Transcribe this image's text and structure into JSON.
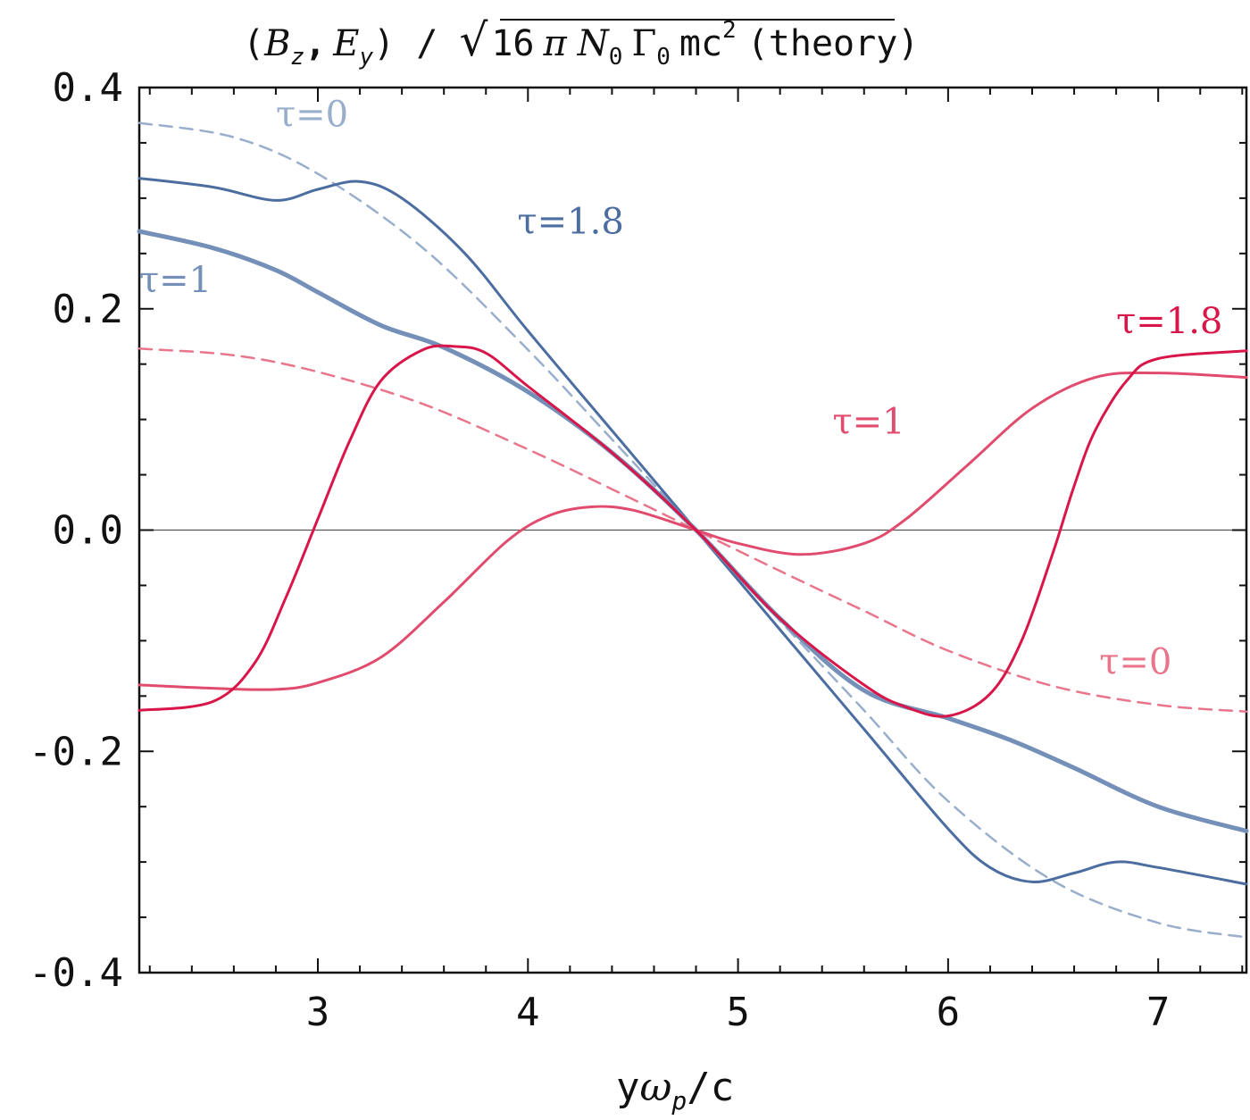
{
  "chart_data": {
    "type": "line",
    "title": "(B_z, E_y) / √(16 π N₀ Γ₀ mc²) (theory)",
    "title_parts": {
      "open": "(",
      "bz": "B",
      "bz_sub": "z",
      "comma": ",",
      "ey": "E",
      "ey_sub": "y",
      "close_slash": ") /",
      "sqrt_sign": "√",
      "radicand_num": "16",
      "pi": "π",
      "n": "N",
      "n_sub": "0",
      "gamma": "Γ",
      "gamma_sub": "0",
      "mc": "mc",
      "mc_sup": "2",
      "theory": "(theory)"
    },
    "xlabel": "yω_p/c",
    "xlabel_parts": {
      "y": "y",
      "omega": "ω",
      "omega_sub": "p",
      "rest": "/c"
    },
    "ylabel": "",
    "xlim": [
      2.15,
      7.42
    ],
    "ylim": [
      -0.4,
      0.4
    ],
    "x_ticks": [
      3,
      4,
      5,
      6,
      7
    ],
    "x_tick_labels": [
      "3",
      "4",
      "5",
      "6",
      "7"
    ],
    "y_ticks": [
      -0.4,
      -0.2,
      0.0,
      0.2,
      0.4
    ],
    "y_tick_labels": [
      "-0.4",
      "-0.2",
      "0.0",
      "0.2",
      "0.4"
    ],
    "zero_line": true,
    "series": [
      {
        "name": "Bz τ=0 (dashed)",
        "label": "τ=0",
        "color": "#98AECB",
        "dashed": true,
        "width": 2.5,
        "x": [
          2.15,
          2.6,
          3.0,
          3.5,
          4.0,
          4.4,
          4.8,
          5.2,
          5.6,
          6.0,
          6.5,
          7.0,
          7.42
        ],
        "y": [
          0.368,
          0.355,
          0.322,
          0.255,
          0.163,
          0.082,
          0.0,
          -0.082,
          -0.163,
          -0.245,
          -0.317,
          -0.355,
          -0.368
        ]
      },
      {
        "name": "Bz τ=1.8",
        "label": "τ=1.8",
        "color": "#4C6DA0",
        "dashed": false,
        "width": 3,
        "x": [
          2.15,
          2.5,
          2.8,
          3.0,
          3.2,
          3.4,
          3.7,
          4.0,
          4.4,
          4.8,
          5.2,
          5.6,
          6.0,
          6.2,
          6.4,
          6.6,
          6.8,
          7.0,
          7.42
        ],
        "y": [
          0.318,
          0.31,
          0.298,
          0.308,
          0.315,
          0.3,
          0.25,
          0.18,
          0.09,
          0.0,
          -0.09,
          -0.18,
          -0.27,
          -0.305,
          -0.318,
          -0.31,
          -0.3,
          -0.305,
          -0.32
        ]
      },
      {
        "name": "Bz τ=1 (thick)",
        "label": "τ=1",
        "color": "#7490B8",
        "dashed": false,
        "width": 5,
        "x": [
          2.15,
          2.5,
          2.8,
          3.0,
          3.3,
          3.6,
          4.0,
          4.4,
          4.8,
          5.2,
          5.6,
          6.0,
          6.3,
          6.6,
          7.0,
          7.42
        ],
        "y": [
          0.27,
          0.255,
          0.235,
          0.215,
          0.185,
          0.165,
          0.125,
          0.07,
          0.0,
          -0.08,
          -0.145,
          -0.17,
          -0.19,
          -0.215,
          -0.25,
          -0.272
        ]
      },
      {
        "name": "Ey τ=0 (dashed)",
        "label": "τ=0",
        "color": "#E8758C",
        "dashed": true,
        "width": 2.5,
        "x": [
          2.15,
          2.6,
          3.0,
          3.5,
          4.0,
          4.4,
          4.8,
          5.2,
          5.6,
          6.0,
          6.5,
          7.0,
          7.42
        ],
        "y": [
          0.164,
          0.158,
          0.143,
          0.114,
          0.073,
          0.037,
          0.0,
          -0.037,
          -0.073,
          -0.109,
          -0.141,
          -0.158,
          -0.164
        ]
      },
      {
        "name": "Ey τ=1",
        "label": "τ=1",
        "color": "#E04B6E",
        "dashed": false,
        "width": 3,
        "x": [
          2.15,
          2.5,
          2.8,
          3.0,
          3.3,
          3.6,
          3.9,
          4.1,
          4.3,
          4.5,
          4.8,
          5.0,
          5.3,
          5.6,
          5.8,
          6.1,
          6.4,
          6.7,
          7.0,
          7.42
        ],
        "y": [
          -0.14,
          -0.143,
          -0.144,
          -0.138,
          -0.115,
          -0.065,
          -0.01,
          0.013,
          0.021,
          0.018,
          0.0,
          -0.012,
          -0.022,
          -0.012,
          0.01,
          0.06,
          0.11,
          0.138,
          0.142,
          0.138
        ]
      },
      {
        "name": "Ey τ=1.8",
        "label": "τ=1.8",
        "color": "#D8164A",
        "dashed": false,
        "width": 3,
        "x": [
          2.15,
          2.5,
          2.7,
          2.85,
          3.0,
          3.15,
          3.3,
          3.5,
          3.65,
          3.8,
          4.0,
          4.4,
          4.8,
          5.2,
          5.6,
          5.8,
          6.0,
          6.2,
          6.35,
          6.5,
          6.6,
          6.7,
          6.85,
          7.0,
          7.42
        ],
        "y": [
          -0.163,
          -0.155,
          -0.12,
          -0.06,
          0.01,
          0.08,
          0.135,
          0.163,
          0.166,
          0.16,
          0.13,
          0.07,
          0.0,
          -0.08,
          -0.14,
          -0.16,
          -0.168,
          -0.148,
          -0.1,
          -0.02,
          0.04,
          0.09,
          0.135,
          0.155,
          0.162
        ]
      }
    ]
  },
  "annotations": [
    {
      "text": "τ=0",
      "color": "#98AECB",
      "x": 2.8,
      "y": 0.365
    },
    {
      "text": "τ=1.8",
      "color": "#4C6DA0",
      "x": 3.95,
      "y": 0.268
    },
    {
      "text": "τ=1",
      "color": "#7490B8",
      "x": 2.15,
      "y": 0.215
    },
    {
      "text": "τ=1.8",
      "color": "#D8164A",
      "x": 6.8,
      "y": 0.178
    },
    {
      "text": "τ=1",
      "color": "#E04B6E",
      "x": 5.45,
      "y": 0.087
    },
    {
      "text": "τ=0",
      "color": "#E8758C",
      "x": 6.72,
      "y": -0.13
    }
  ]
}
